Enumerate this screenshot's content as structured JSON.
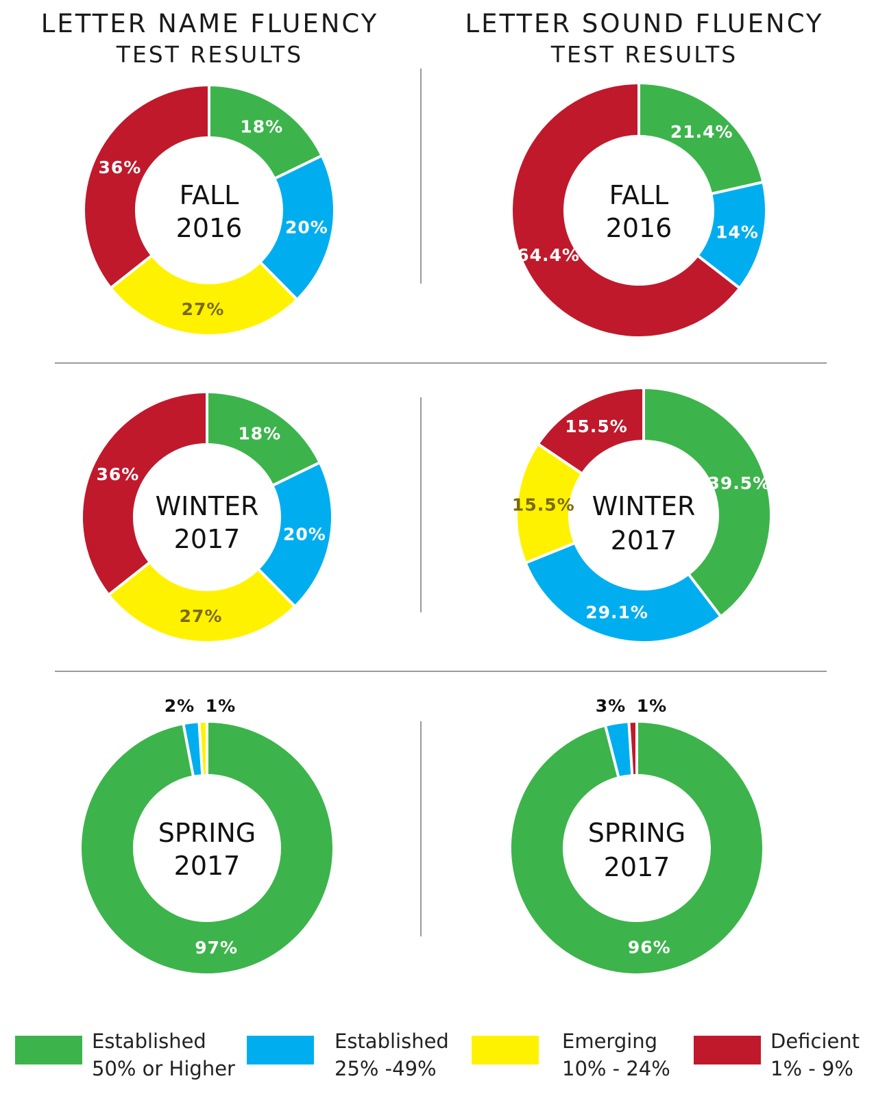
{
  "titles": {
    "left": {
      "line1": "LETTER NAME FLUENCY",
      "line2": "TEST RESULTS"
    },
    "right": {
      "line1": "LETTER SOUND FLUENCY",
      "line2": "TEST RESULTS"
    }
  },
  "colors": {
    "established_high": "#3cb44b",
    "established_mid": "#00aeef",
    "emerging": "#fff200",
    "deficient": "#c0192c"
  },
  "legend": [
    {
      "line1": "Established",
      "line2": "50% or Higher",
      "color": "#3cb44b"
    },
    {
      "line1": "Established",
      "line2": "25% -49%",
      "color": "#00aeef"
    },
    {
      "line1": "Emerging",
      "line2": "10% - 24%",
      "color": "#fff200"
    },
    {
      "line1": "Deficient",
      "line2": "1% - 9%",
      "color": "#c0192c"
    }
  ],
  "chart_data": [
    {
      "type": "pie",
      "test": "Letter Name Fluency",
      "center": [
        "FALL",
        "2016"
      ],
      "slices": [
        {
          "category": "Established 50% or Higher",
          "value": 18,
          "label": "18%"
        },
        {
          "category": "Established 25% -49%",
          "value": 20,
          "label": "20%"
        },
        {
          "category": "Emerging 10% - 24%",
          "value": 27,
          "label": "27%"
        },
        {
          "category": "Deficient 1% - 9%",
          "value": 36,
          "label": "36%"
        }
      ]
    },
    {
      "type": "pie",
      "test": "Letter Sound Fluency",
      "center": [
        "FALL",
        "2016"
      ],
      "slices": [
        {
          "category": "Established 50% or Higher",
          "value": 21.4,
          "label": "21.4%"
        },
        {
          "category": "Established 25% -49%",
          "value": 14,
          "label": "14%"
        },
        {
          "category": "Deficient 1% - 9%",
          "value": 64.4,
          "label": "64.4%"
        }
      ]
    },
    {
      "type": "pie",
      "test": "Letter Name Fluency",
      "center": [
        "WINTER",
        "2017"
      ],
      "slices": [
        {
          "category": "Established 50% or Higher",
          "value": 18,
          "label": "18%"
        },
        {
          "category": "Established 25% -49%",
          "value": 20,
          "label": "20%"
        },
        {
          "category": "Emerging 10% - 24%",
          "value": 27,
          "label": "27%"
        },
        {
          "category": "Deficient 1% - 9%",
          "value": 36,
          "label": "36%"
        }
      ]
    },
    {
      "type": "pie",
      "test": "Letter Sound Fluency",
      "center": [
        "WINTER",
        "2017"
      ],
      "slices": [
        {
          "category": "Established 50% or Higher",
          "value": 39.5,
          "label": "39.5%"
        },
        {
          "category": "Established 25% -49%",
          "value": 29.1,
          "label": "29.1%"
        },
        {
          "category": "Emerging 10% - 24%",
          "value": 15.5,
          "label": "15.5%"
        },
        {
          "category": "Deficient 1% - 9%",
          "value": 15.5,
          "label": "15.5%"
        }
      ]
    },
    {
      "type": "pie",
      "test": "Letter Name Fluency",
      "center": [
        "SPRING",
        "2017"
      ],
      "slices": [
        {
          "category": "Established 50% or Higher",
          "value": 97,
          "label": "97%"
        },
        {
          "category": "Established 25% -49%",
          "value": 2,
          "label": "2%"
        },
        {
          "category": "Emerging 10% - 24%",
          "value": 1,
          "label": "1%"
        }
      ]
    },
    {
      "type": "pie",
      "test": "Letter Sound Fluency",
      "center": [
        "SPRING",
        "2017"
      ],
      "slices": [
        {
          "category": "Established 50% or Higher",
          "value": 96,
          "label": "96%"
        },
        {
          "category": "Established 25% -49%",
          "value": 3,
          "label": "3%"
        },
        {
          "category": "Deficient 1% - 9%",
          "value": 1,
          "label": "1%"
        }
      ]
    }
  ]
}
